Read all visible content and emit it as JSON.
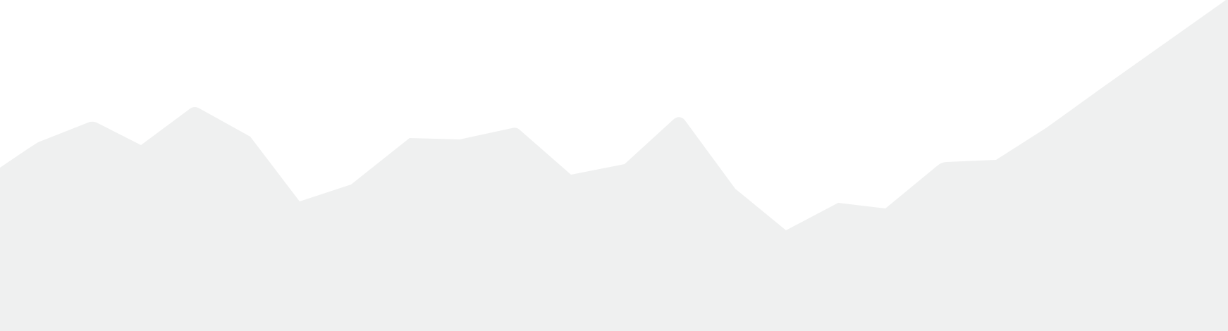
{
  "scene": {
    "background_color": "#ffffff",
    "fill_color": "#eff0f0",
    "shape": "mountain-silhouette"
  }
}
